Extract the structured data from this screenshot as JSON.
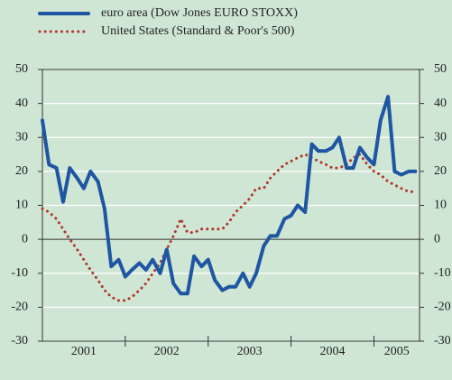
{
  "chart_data": {
    "type": "line",
    "x_labels": [
      "2001",
      "2002",
      "2003",
      "2004",
      "2005"
    ],
    "x": [
      2001.0,
      2001.08,
      2001.17,
      2001.25,
      2001.33,
      2001.42,
      2001.5,
      2001.58,
      2001.67,
      2001.75,
      2001.83,
      2001.92,
      2002.0,
      2002.08,
      2002.17,
      2002.25,
      2002.33,
      2002.42,
      2002.5,
      2002.58,
      2002.67,
      2002.75,
      2002.83,
      2002.92,
      2003.0,
      2003.08,
      2003.17,
      2003.25,
      2003.33,
      2003.42,
      2003.5,
      2003.58,
      2003.67,
      2003.75,
      2003.83,
      2003.92,
      2004.0,
      2004.08,
      2004.17,
      2004.25,
      2004.33,
      2004.42,
      2004.5,
      2004.58,
      2004.67,
      2004.75,
      2004.83,
      2004.92,
      2005.0,
      2005.08,
      2005.17,
      2005.25,
      2005.33,
      2005.42,
      2005.5
    ],
    "series": [
      {
        "name": "euro area (Dow Jones EURO STOXX)",
        "color": "#1f56a3",
        "style": "solid",
        "values": [
          35,
          22,
          21,
          11,
          21,
          18,
          15,
          20,
          17,
          9,
          -8,
          -6,
          -11,
          -9,
          -7,
          -9,
          -6,
          -10,
          -3,
          -13,
          -16,
          -16,
          -5,
          -8,
          -6,
          -12,
          -15,
          -14,
          -14,
          -10,
          -14,
          -10,
          -2,
          1,
          1,
          6,
          7,
          10,
          8,
          28,
          26,
          26,
          27,
          30,
          21,
          21,
          27,
          24,
          22,
          35,
          42,
          20,
          19,
          20,
          20
        ]
      },
      {
        "name": "United States (Standard & Poor's 500)",
        "color": "#b0372c",
        "style": "dotted",
        "values": [
          9,
          8,
          6,
          3,
          0,
          -3,
          -6,
          -9,
          -12,
          -15,
          -17,
          -18,
          -18,
          -17,
          -15,
          -13,
          -10,
          -7,
          -3,
          1,
          6,
          2,
          2,
          3,
          3,
          3,
          3,
          5,
          8,
          10,
          12,
          15,
          15,
          18,
          20,
          22,
          23,
          24,
          25,
          24,
          23,
          22,
          21,
          21,
          22,
          24,
          25,
          22,
          20,
          19,
          17,
          16,
          15,
          14,
          14
        ]
      }
    ],
    "xlim": [
      2001,
      2005.55
    ],
    "xticks": [
      2002,
      2003,
      2004,
      2005
    ],
    "ylim": [
      -30,
      50
    ],
    "yticks": [
      -30,
      -20,
      -10,
      0,
      10,
      20,
      30,
      40,
      50
    ],
    "grid": true
  }
}
